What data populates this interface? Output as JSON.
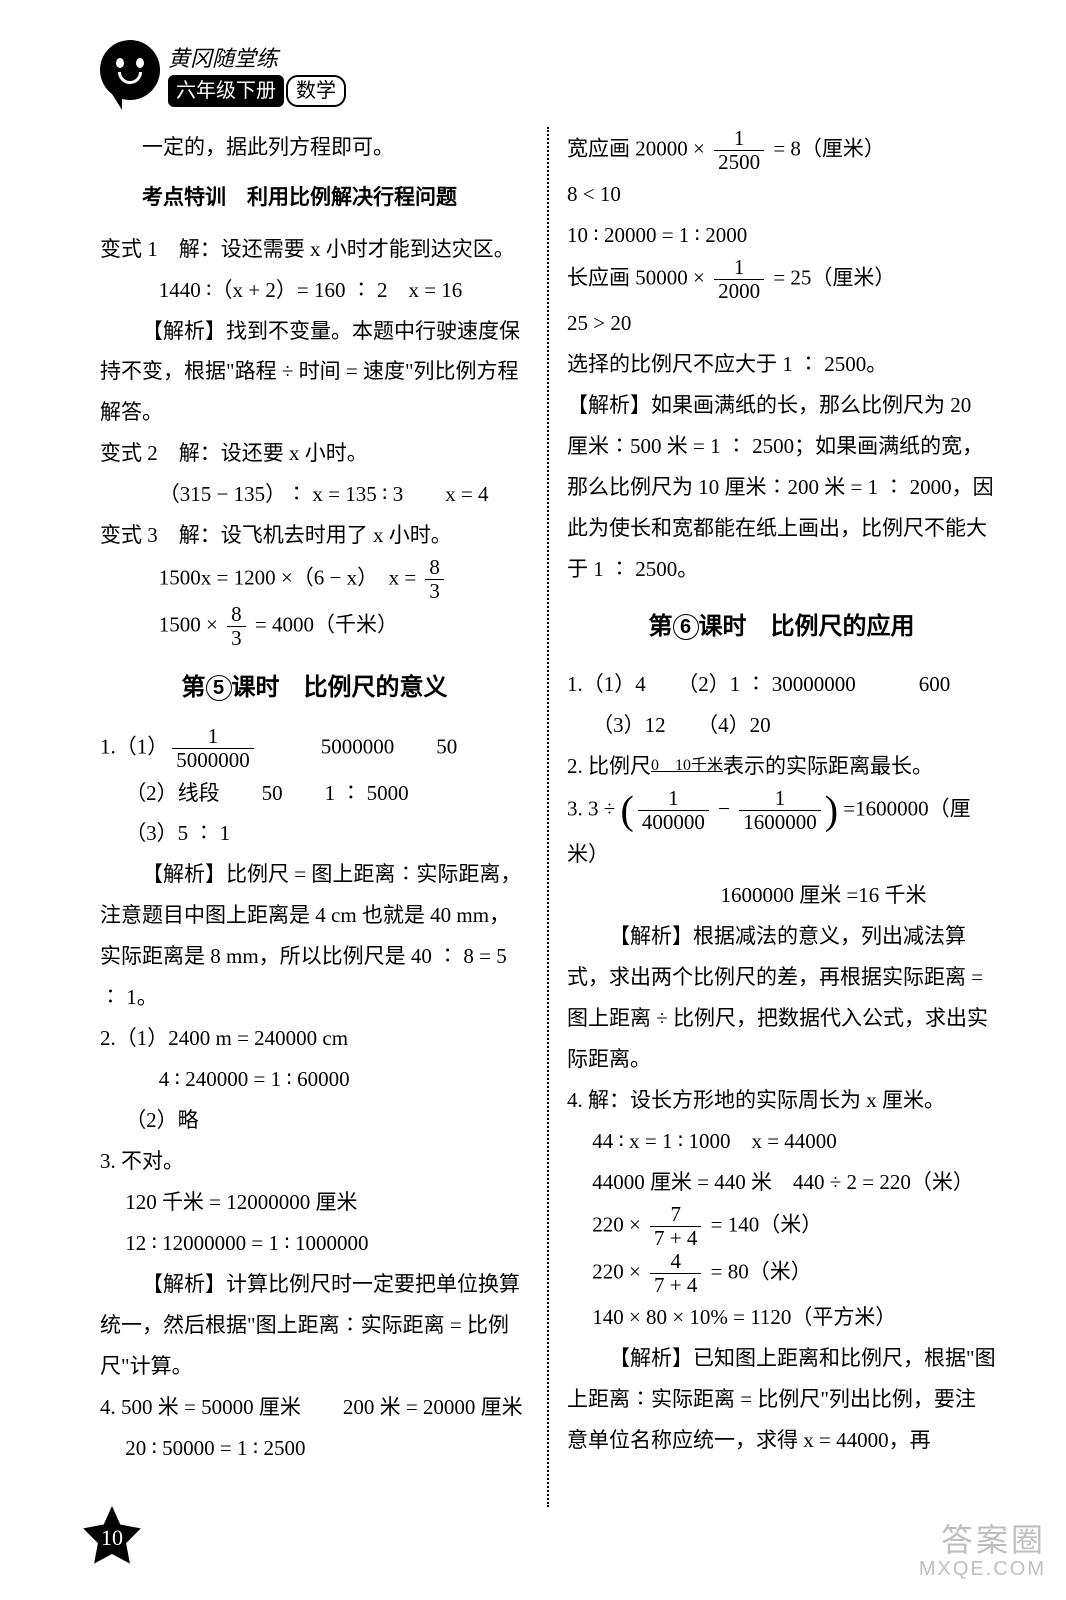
{
  "header": {
    "series": "黄冈随堂练",
    "grade": "六年级下册",
    "subject": "数学"
  },
  "page_number": "10",
  "watermark": {
    "l1": "答案圈",
    "l2": "MXQE.COM"
  },
  "left": {
    "p1": "一定的，据此列方程即可。",
    "kdtx": "考点特训　利用比例解决行程问题",
    "b1_label": "变式 1",
    "b1_l1": "解：设还需要 x 小时才能到达灾区。",
    "b1_l2": "1440 ∶（x + 2）= 160 ∶ 2　x = 16",
    "b1_jx": "【解析】找到不变量。本题中行驶速度保持不变，根据\"路程 ÷ 时间 = 速度\"列比例方程解答。",
    "b2_label": "变式 2",
    "b2_l1": "解：设还要 x 小时。",
    "b2_l2": "（315 − 135）∶ x = 135 ∶ 3　　x = 4",
    "b3_label": "变式 3",
    "b3_l1": "解：设飞机去时用了 x 小时。",
    "b3_l2a": "1500x = 1200 ×（6 − x）　x = ",
    "b3_f1n": "8",
    "b3_f1d": "3",
    "b3_l3a": "1500 × ",
    "b3_f2n": "8",
    "b3_f2d": "3",
    "b3_l3b": " = 4000（千米）",
    "h5a": "第",
    "h5num": "5",
    "h5b": "课时　比例尺的意义",
    "q1_1a": "1.（1）",
    "q1_1fn": "1",
    "q1_1fd": "5000000",
    "q1_1b": "5000000",
    "q1_1c": "50",
    "q1_2": "（2）线段　　50　　1 ∶ 5000",
    "q1_3": "（3）5 ∶ 1",
    "q1_jx": "【解析】比例尺 = 图上距离∶实际距离，注意题目中图上距离是 4 cm 也就是 40 mm，实际距离是 8 mm，所以比例尺是 40 ∶ 8 = 5 ∶ 1。",
    "q2_1": "2.（1）2400 m = 240000 cm",
    "q2_1b": "4 ∶ 240000 = 1 ∶ 60000",
    "q2_2": "（2）略",
    "q3_1": "3. 不对。",
    "q3_2": "120 千米 = 12000000 厘米",
    "q3_3": "12 ∶ 12000000 = 1 ∶ 1000000",
    "q3_jx": "【解析】计算比例尺时一定要把单位换算统一，然后根据\"图上距离∶实际距离 = 比例尺\"计算。",
    "q4_1": "4. 500 米 = 50000 厘米　　200 米 = 20000 厘米",
    "q4_2": "20 ∶ 50000 = 1 ∶ 2500"
  },
  "right": {
    "r1a": "宽应画 20000 × ",
    "r1fn": "1",
    "r1fd": "2500",
    "r1b": " = 8（厘米）",
    "r2": "8 < 10",
    "r3": "10 ∶ 20000 = 1 ∶ 2000",
    "r4a": "长应画 50000 × ",
    "r4fn": "1",
    "r4fd": "2000",
    "r4b": " = 25（厘米）",
    "r5": "25 > 20",
    "r6": "选择的比例尺不应大于 1 ∶ 2500。",
    "r_jx1": "【解析】如果画满纸的长，那么比例尺为 20 厘米∶500 米 = 1 ∶ 2500；如果画满纸的宽，那么比例尺为 10 厘米∶200 米 = 1 ∶ 2000，因此为使长和宽都能在纸上画出，比例尺不能大于 1 ∶ 2500。",
    "h6a": "第",
    "h6num": "6",
    "h6b": "课时　比例尺的应用",
    "s1_1": "1.（1）4　　（2）1 ∶ 30000000　　　600",
    "s1_2": "（3）12　　（4）20",
    "s2a": "2. 比例尺",
    "s2label": "0　10千米",
    "s2b": "表示的实际距离最长。",
    "s3a": "3. 3 ÷ ",
    "s3f1n": "1",
    "s3f1d": "400000",
    "s3mid": " − ",
    "s3f2n": "1",
    "s3f2d": "1600000",
    "s3b": " =1600000（厘米）",
    "s3c": "1600000 厘米 =16 千米",
    "s3_jx": "【解析】根据减法的意义，列出减法算式，求出两个比例尺的差，再根据实际距离 = 图上距离 ÷ 比例尺，把数据代入公式，求出实际距离。",
    "s4_1": "4. 解：设长方形地的实际周长为 x 厘米。",
    "s4_2": "44 ∶ x = 1 ∶ 1000　x = 44000",
    "s4_3": "44000 厘米 = 440 米　440 ÷ 2 = 220（米）",
    "s4_4a": "220 × ",
    "s4_4fn": "7",
    "s4_4fd": "7 + 4",
    "s4_4b": " = 140（米）",
    "s4_5a": "220 × ",
    "s4_5fn": "4",
    "s4_5fd": "7 + 4",
    "s4_5b": " = 80（米）",
    "s4_6": "140 × 80 × 10% = 1120（平方米）",
    "s4_jx": "【解析】已知图上距离和比例尺，根据\"图上距离∶实际距离 = 比例尺\"列出比例，要注意单位名称应统一，求得 x = 44000，再"
  }
}
